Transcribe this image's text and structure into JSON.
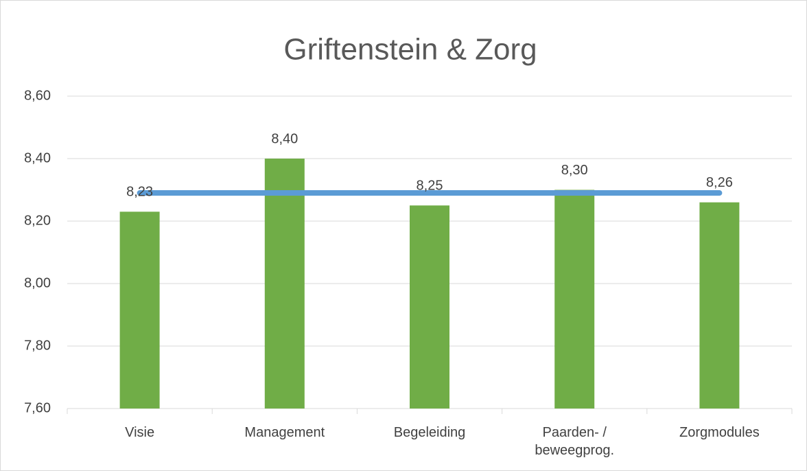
{
  "chart_data": {
    "type": "bar",
    "title": "Griftenstein & Zorg",
    "categories": [
      "Visie",
      "Management",
      "Begeleiding",
      "Paarden- / beweegprog.",
      "Zorgmodules"
    ],
    "series": [
      {
        "type": "bar",
        "color": "#70ad47",
        "values": [
          8.23,
          8.4,
          8.25,
          8.3,
          8.26
        ],
        "value_labels": [
          "8,23",
          "8,40",
          "8,25",
          "8,30",
          "8,26"
        ]
      },
      {
        "type": "line",
        "color": "#5b9bd5",
        "values": [
          8.29,
          8.29,
          8.29,
          8.29,
          8.29
        ]
      }
    ],
    "ylim": [
      7.6,
      8.6
    ],
    "yticks": [
      {
        "value": 7.6,
        "label": "7,60"
      },
      {
        "value": 7.8,
        "label": "7,80"
      },
      {
        "value": 8.0,
        "label": "8,00"
      },
      {
        "value": 8.2,
        "label": "8,20"
      },
      {
        "value": 8.4,
        "label": "8,40"
      },
      {
        "value": 8.6,
        "label": "8,60"
      }
    ],
    "grid": true
  }
}
